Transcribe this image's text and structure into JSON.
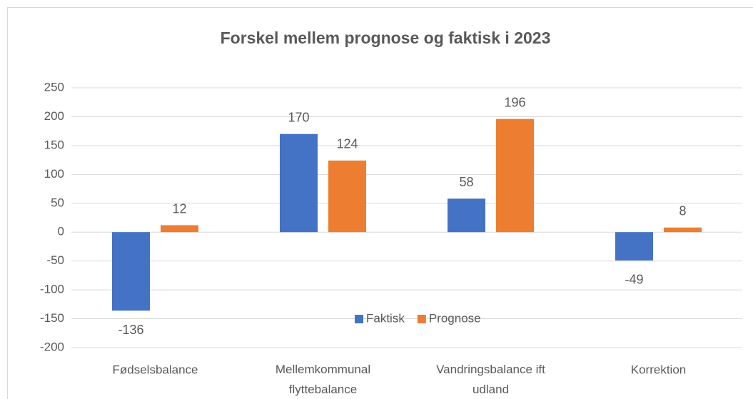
{
  "chart_data": {
    "type": "bar",
    "title": "Forskel mellem prognose og faktisk i 2023",
    "categories": [
      "Fødselsbalance",
      "Mellemkommunal flyttebalance",
      "Vandringsbalance ift udland",
      "Korrektion"
    ],
    "series": [
      {
        "name": "Faktisk",
        "color": "#4472c4",
        "values": [
          -136,
          170,
          58,
          -49
        ]
      },
      {
        "name": "Prognose",
        "color": "#ed7d31",
        "values": [
          12,
          124,
          196,
          8
        ]
      }
    ],
    "ylim": [
      -200,
      250
    ],
    "yticks": [
      -200,
      -150,
      -100,
      -50,
      0,
      50,
      100,
      150,
      200,
      250
    ],
    "grid": true,
    "legend": "bottom"
  }
}
